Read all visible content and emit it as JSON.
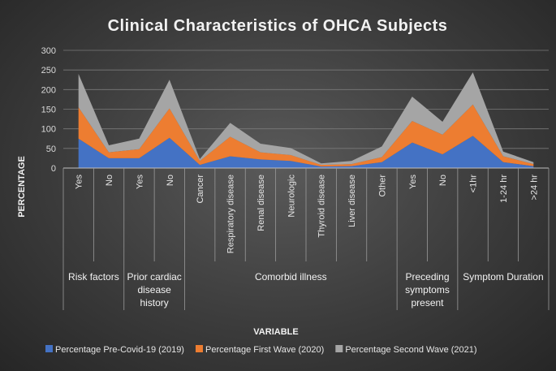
{
  "chart_data": {
    "type": "area",
    "stacked": true,
    "title": "Clinical Characteristics of OHCA Subjects",
    "xlabel": "VARIABLE",
    "ylabel": "PERCENTAGE",
    "ylim": [
      0,
      300
    ],
    "yticks": [
      "0",
      "50",
      "100",
      "150",
      "200",
      "250",
      "300"
    ],
    "grid": true,
    "legend_position": "bottom",
    "categories": [
      "Yes",
      "No",
      "Yes",
      "No",
      "Cancer",
      "Respiratory disease",
      "Renal disease",
      "Neurologic",
      "Thyroid disease",
      "Liver disease",
      "Other",
      "Yes",
      "No",
      "<1hr",
      "1-24 hr",
      ">24 hr"
    ],
    "groups": [
      {
        "label": [
          "Risk factors"
        ],
        "span": [
          0,
          1
        ]
      },
      {
        "label": [
          "Prior cardiac",
          "disease",
          "history"
        ],
        "span": [
          2,
          3
        ]
      },
      {
        "label": [
          "Comorbid illness"
        ],
        "span": [
          4,
          10
        ]
      },
      {
        "label": [
          "Preceding",
          "symptoms",
          "present"
        ],
        "span": [
          11,
          12
        ]
      },
      {
        "label": [
          "Symptom Duration"
        ],
        "span": [
          13,
          15
        ]
      }
    ],
    "series": [
      {
        "name": "Percentage Pre-Covid-19 (2019)",
        "color": "#4472c4",
        "values": [
          75,
          25,
          25,
          77,
          8,
          30,
          22,
          18,
          4,
          5,
          15,
          65,
          35,
          82,
          15,
          5
        ]
      },
      {
        "name": "Percentage First Wave (2020)",
        "color": "#ed7d31",
        "values": [
          80,
          15,
          23,
          75,
          10,
          50,
          18,
          15,
          4,
          5,
          13,
          55,
          50,
          80,
          15,
          5
        ]
      },
      {
        "name": "Percentage Second Wave (2021)",
        "color": "#a5a5a5",
        "values": [
          85,
          18,
          27,
          73,
          5,
          35,
          22,
          18,
          4,
          8,
          27,
          62,
          33,
          82,
          12,
          5
        ]
      }
    ]
  }
}
